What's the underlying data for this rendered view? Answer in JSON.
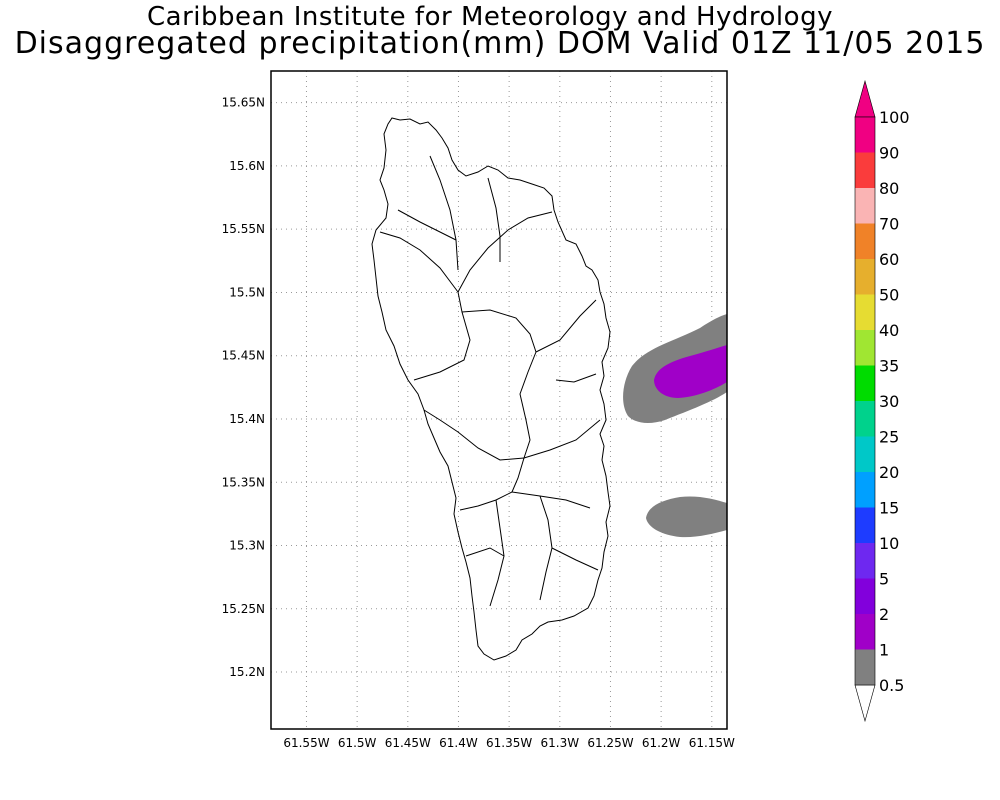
{
  "header": {
    "institute": "Caribbean Institute for Meteorology and Hydrology",
    "product": "Disaggregated precipitation(mm) DOM Valid 01Z 11/05 2015"
  },
  "map": {
    "lon_ticks": [
      {
        "v": -61.55,
        "label": "61.55W"
      },
      {
        "v": -61.5,
        "label": "61.5W"
      },
      {
        "v": -61.45,
        "label": "61.45W"
      },
      {
        "v": -61.4,
        "label": "61.4W"
      },
      {
        "v": -61.35,
        "label": "61.35W"
      },
      {
        "v": -61.3,
        "label": "61.3W"
      },
      {
        "v": -61.25,
        "label": "61.25W"
      },
      {
        "v": -61.2,
        "label": "61.2W"
      },
      {
        "v": -61.15,
        "label": "61.15W"
      }
    ],
    "lat_ticks": [
      {
        "v": 15.65,
        "label": "15.65N"
      },
      {
        "v": 15.6,
        "label": "15.6N"
      },
      {
        "v": 15.55,
        "label": "15.55N"
      },
      {
        "v": 15.5,
        "label": "15.5N"
      },
      {
        "v": 15.45,
        "label": "15.45N"
      },
      {
        "v": 15.4,
        "label": "15.4N"
      },
      {
        "v": 15.35,
        "label": "15.35N"
      },
      {
        "v": 15.3,
        "label": "15.3N"
      },
      {
        "v": 15.25,
        "label": "15.25N"
      },
      {
        "v": 15.2,
        "label": "15.2N"
      }
    ],
    "region": "Dominica",
    "precip_areas": [
      {
        "level": "0.5-1",
        "color": "#808080",
        "desc": "east offshore band near 15.42N"
      },
      {
        "level": "1-2",
        "color": "#a000c8",
        "desc": "core near 15.43N 61.17W"
      },
      {
        "level": "0.5-1",
        "color": "#808080",
        "desc": "east offshore band near 15.32N"
      }
    ]
  },
  "colorbar": {
    "unit": "mm",
    "levels": [
      "0.5",
      "1",
      "2",
      "5",
      "10",
      "15",
      "20",
      "25",
      "30",
      "35",
      "40",
      "50",
      "60",
      "70",
      "80",
      "90",
      "100"
    ],
    "colors": [
      "#808080",
      "#a000c8",
      "#8200dc",
      "#6e28f0",
      "#1e3cff",
      "#00a0ff",
      "#00c8c8",
      "#00d28c",
      "#00dc00",
      "#a0e632",
      "#e6dc32",
      "#e6af2d",
      "#f08228",
      "#fab4b4",
      "#fa3c3c",
      "#f00082"
    ],
    "under_color": "#ffffff",
    "over_color": "#f00082"
  }
}
